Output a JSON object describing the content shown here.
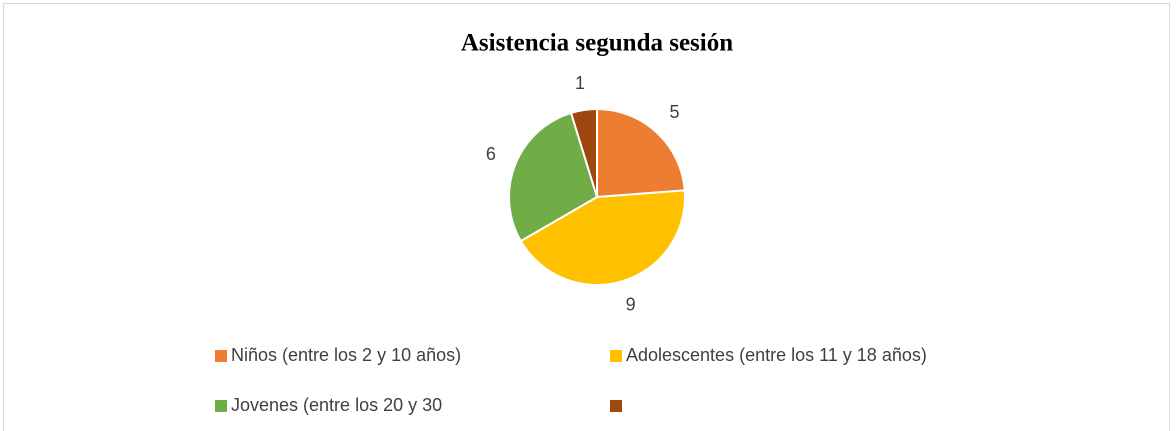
{
  "chart_data": {
    "type": "pie",
    "title": "Asistencia segunda sesión",
    "categories": [
      "Niños (entre los 2 y 10 años)",
      "Adolescentes (entre los 11 y 18 años)",
      "Jovenes (entre los 20 y 30",
      null
    ],
    "values": [
      5,
      9,
      6,
      1
    ],
    "colors": [
      "#ed7d31",
      "#ffc000",
      "#70ad47",
      "#9e480e"
    ],
    "legend": "bottom"
  }
}
